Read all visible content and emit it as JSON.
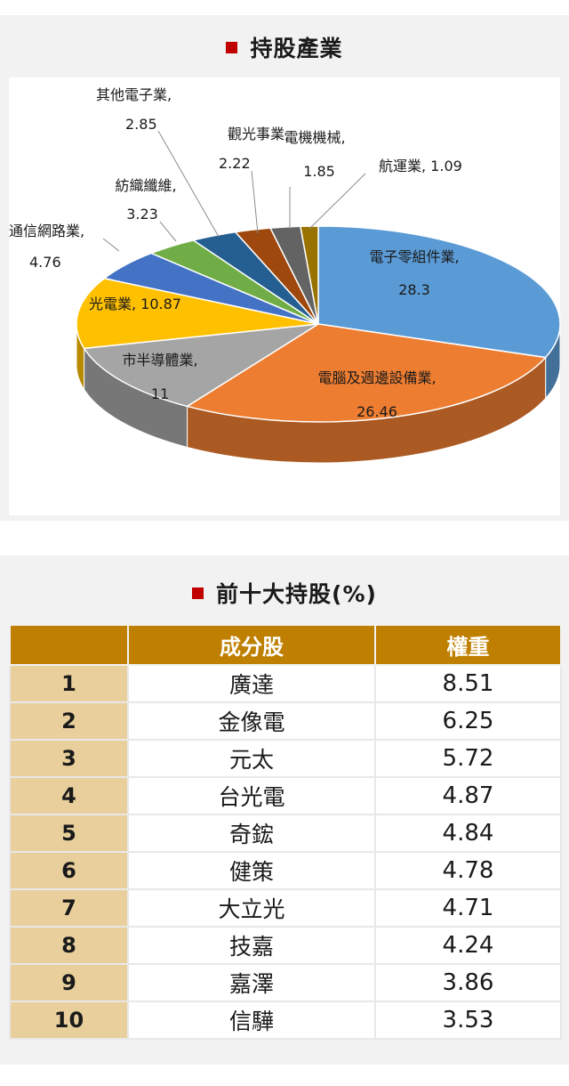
{
  "chart_data": {
    "type": "pie",
    "title": "持股產業",
    "slices": [
      {
        "label": "電子零組件業,",
        "value": "28.3",
        "color": "#5b9bd5"
      },
      {
        "label": "電腦及週邊設備業,",
        "value": "26.46",
        "color": "#ed7d31"
      },
      {
        "label": "市半導體業,",
        "value": "11",
        "color": "#a5a5a5"
      },
      {
        "label": "光電業,",
        "value": "10.87",
        "color": "#ffc000"
      },
      {
        "label": "通信網路業,",
        "value": "4.76",
        "color": "#4472c4"
      },
      {
        "label": "紡織纖維,",
        "value": "3.23",
        "color": "#70ad47"
      },
      {
        "label": "其他電子業,",
        "value": "2.85",
        "color": "#255e91"
      },
      {
        "label": "觀光事業,",
        "value": "2.22",
        "color": "#9e480e"
      },
      {
        "label": "電機機械,",
        "value": "1.85",
        "color": "#636363"
      },
      {
        "label": "航運業,",
        "value": "1.09",
        "color": "#997300"
      }
    ]
  },
  "holdings": {
    "title": "前十大持股(%)",
    "header": {
      "rank": "",
      "name": "成分股",
      "weight": "權重"
    },
    "rows": [
      {
        "rank": "1",
        "name": "廣達",
        "weight": "8.51"
      },
      {
        "rank": "2",
        "name": "金像電",
        "weight": "6.25"
      },
      {
        "rank": "3",
        "name": "元太",
        "weight": "5.72"
      },
      {
        "rank": "4",
        "name": "台光電",
        "weight": "4.87"
      },
      {
        "rank": "5",
        "name": "奇鋐",
        "weight": "4.84"
      },
      {
        "rank": "6",
        "name": "健策",
        "weight": "4.78"
      },
      {
        "rank": "7",
        "name": "大立光",
        "weight": "4.71"
      },
      {
        "rank": "8",
        "name": "技嘉",
        "weight": "4.24"
      },
      {
        "rank": "9",
        "name": "嘉澤",
        "weight": "3.86"
      },
      {
        "rank": "10",
        "name": "信驊",
        "weight": "3.53"
      }
    ]
  }
}
